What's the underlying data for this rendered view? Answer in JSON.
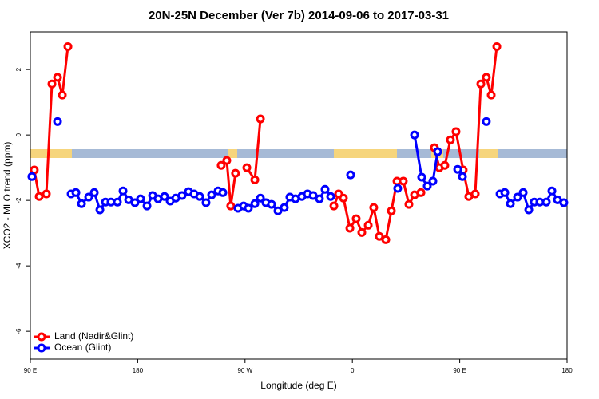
{
  "chart_data": {
    "type": "line",
    "title": "20N-25N December (Ver 7b)   2014-09-06 to 2017-03-31",
    "x_label": "Longitude (deg E)",
    "y_label": "XCO2 - MLO trend (ppm)",
    "xlim": [
      90,
      540
    ],
    "ylim": [
      -6.85,
      3.15
    ],
    "xticks": [
      {
        "value": 90,
        "label": "90 E"
      },
      180,
      {
        "value": 270,
        "label": "90 W"
      },
      {
        "value": 360,
        "label": "0"
      },
      {
        "value": 450,
        "label": "90 E"
      },
      {
        "value": 540,
        "label": "180"
      }
    ],
    "yticks": [
      -6,
      -4,
      -2,
      0,
      2
    ],
    "legend": "bottom-left",
    "series": [
      {
        "name": "Land (Nadir&Glint)",
        "color": "#ff0000",
        "x": [
          93.3,
          97.4,
          103.4,
          108.1,
          112.8,
          116.8,
          121.5,
          null,
          250,
          254.7,
          258,
          262,
          null,
          271.5,
          278.2,
          282.9,
          null,
          344.5,
          348.5,
          352.5,
          357.9,
          363.2,
          367.9,
          373.3,
          377.9,
          382.6,
          388,
          392.7,
          397.4,
          402.7,
          407.4,
          412.1,
          417.5,
          null,
          428.8,
          432.9,
          437.5,
          442.2,
          446.9,
          452.9,
          457.6,
          463,
          467.7,
          472.3,
          476.4,
          481.1
        ],
        "values": [
          -1.07,
          -1.88,
          -1.8,
          1.56,
          1.76,
          1.22,
          2.7,
          null,
          -0.93,
          -0.78,
          -2.17,
          -1.17,
          null,
          -1.0,
          -1.37,
          0.49,
          null,
          -2.17,
          -1.8,
          -1.93,
          -2.85,
          -2.56,
          -2.98,
          -2.76,
          -2.22,
          -3.1,
          -3.2,
          -2.32,
          -1.41,
          -1.41,
          -2.12,
          -1.83,
          -1.76,
          null,
          -0.39,
          -1.0,
          -0.93,
          -0.15,
          0.1,
          -1.07,
          -1.88,
          -1.8,
          1.56,
          1.76,
          1.22,
          2.7
        ]
      },
      {
        "name": "Ocean (Glint)",
        "color": "#0000ff",
        "x": [
          91.3,
          null,
          112.8,
          null,
          124.2,
          128.2,
          132.9,
          138.9,
          143.6,
          148.3,
          153,
          157.6,
          163,
          167.7,
          172.4,
          177.7,
          182.4,
          187.8,
          192.5,
          197.1,
          202.5,
          207.2,
          211.9,
          217.2,
          222.6,
          227.3,
          232,
          237.3,
          242,
          247.4,
          251.4,
          null,
          264.1,
          268.8,
          272.8,
          278.2,
          282.9,
          287.5,
          292.2,
          297.6,
          302.9,
          307.6,
          312.3,
          317.7,
          322.4,
          327.1,
          332.4,
          337.1,
          341.8,
          null,
          358.5,
          null,
          398,
          null,
          412.1,
          418.1,
          422.8,
          427.5,
          431.5,
          null,
          448.3,
          452.3,
          null,
          472.3,
          null,
          483.8,
          487.8,
          492.5,
          498.5,
          503.2,
          507.9,
          512.5,
          517.2,
          522.6,
          527.3,
          532,
          537.3
        ],
        "values": [
          -1.27,
          null,
          0.41,
          null,
          -1.8,
          -1.76,
          -2.1,
          -1.9,
          -1.76,
          -2.29,
          -2.05,
          -2.05,
          -2.05,
          -1.71,
          -1.98,
          -2.07,
          -1.95,
          -2.17,
          -1.85,
          -1.95,
          -1.88,
          -2.02,
          -1.93,
          -1.85,
          -1.73,
          -1.8,
          -1.88,
          -2.07,
          -1.83,
          -1.71,
          -1.76,
          null,
          -2.24,
          -2.17,
          -2.24,
          -2.1,
          -1.93,
          -2.07,
          -2.12,
          -2.32,
          -2.22,
          -1.9,
          -1.95,
          -1.88,
          -1.8,
          -1.85,
          -1.95,
          -1.66,
          -1.88,
          null,
          -1.22,
          null,
          -1.63,
          null,
          0.0,
          -1.29,
          -1.56,
          -1.41,
          -0.51,
          null,
          -1.05,
          -1.27,
          null,
          0.41,
          null,
          -1.8,
          -1.76,
          -2.1,
          -1.9,
          -1.76,
          -2.29,
          -2.05,
          -2.05,
          -2.05,
          -1.71,
          -1.98,
          -2.07
        ]
      }
    ]
  }
}
